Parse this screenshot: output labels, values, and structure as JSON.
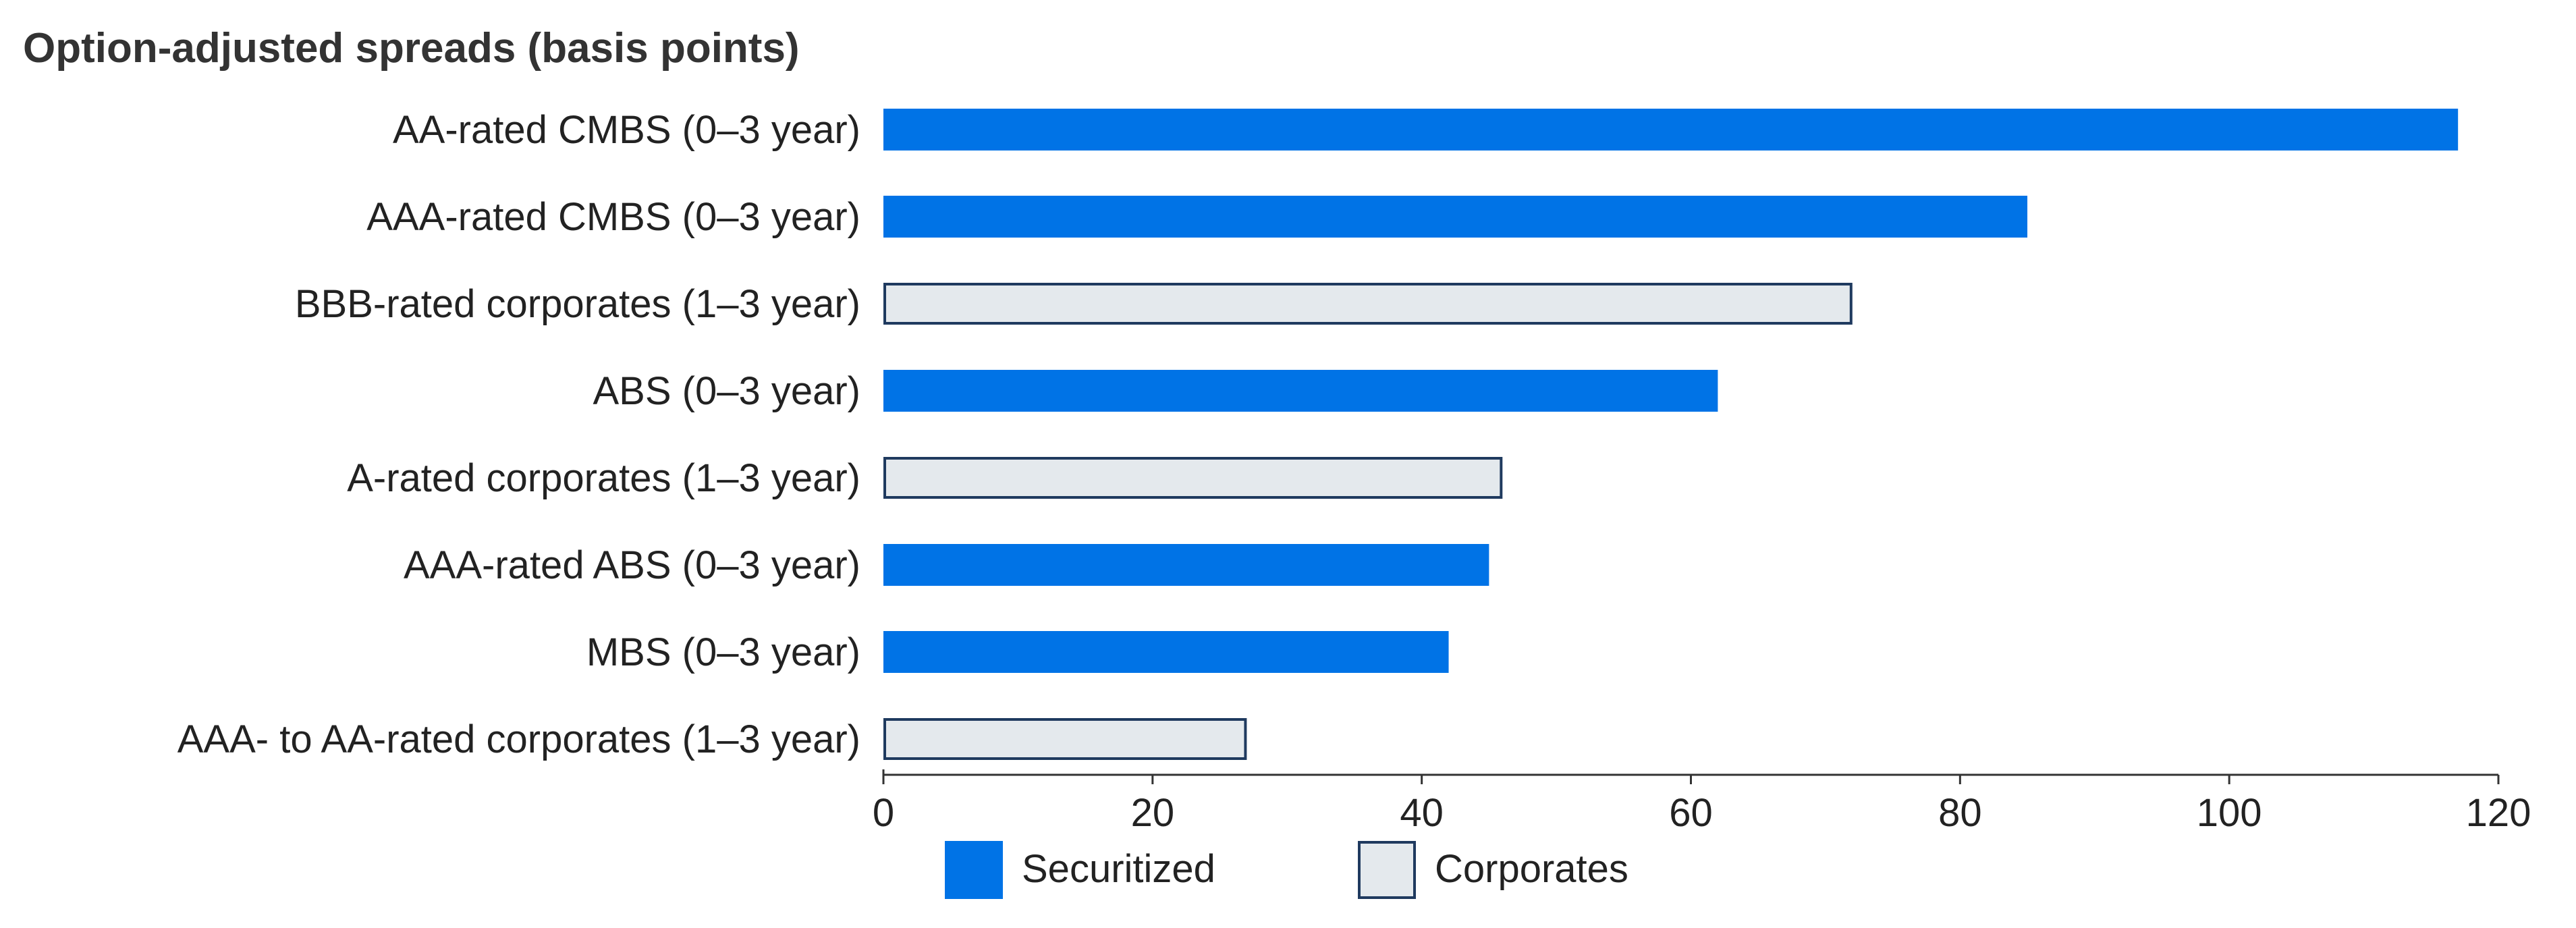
{
  "chart_data": {
    "type": "bar",
    "orientation": "horizontal",
    "title": "Option-adjusted spreads (basis points)",
    "xlabel": "",
    "ylabel": "",
    "xlim": [
      0,
      120
    ],
    "x_ticks": [
      0,
      20,
      40,
      60,
      80,
      100,
      120
    ],
    "grid": false,
    "legend_position": "bottom",
    "categories": [
      "AA-rated CMBS (0–3 year)",
      "AAA-rated CMBS (0–3 year)",
      "BBB-rated corporates (1–3 year)",
      "ABS (0–3 year)",
      "A-rated corporates (1–3 year)",
      "AAA-rated ABS (0–3 year)",
      "MBS (0–3 year)",
      "AAA- to AA-rated corporates (1–3 year)"
    ],
    "values": [
      117,
      85,
      72,
      62,
      46,
      45,
      42,
      27
    ],
    "groups": [
      "Securitized",
      "Securitized",
      "Corporates",
      "Securitized",
      "Corporates",
      "Securitized",
      "Securitized",
      "Corporates"
    ],
    "series": [
      {
        "name": "Securitized",
        "fill": "#0073e6",
        "stroke": "#0073e6"
      },
      {
        "name": "Corporates",
        "fill": "#e4e9ed",
        "stroke": "#1f3a5f"
      }
    ]
  }
}
